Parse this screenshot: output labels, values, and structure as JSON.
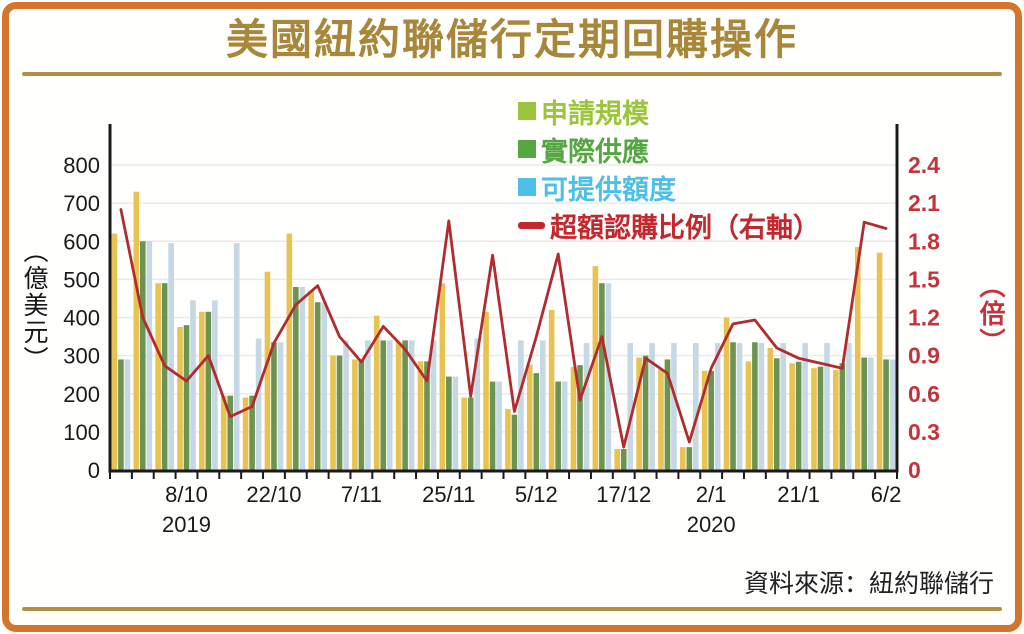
{
  "header": {
    "title": "美國紐約聯儲行定期回購操作"
  },
  "source": {
    "label": "資料來源：紐約聯儲行"
  },
  "legend": {
    "items": [
      {
        "label": "申請規模",
        "marker": "square",
        "color": "#9CC43C"
      },
      {
        "label": "實際供應",
        "marker": "square",
        "color": "#57A644"
      },
      {
        "label": "可提供額度",
        "marker": "square",
        "color": "#4EC0E8"
      },
      {
        "label": "超額認購比例（右軸）",
        "marker": "line",
        "color": "#C3282F"
      }
    ]
  },
  "colors": {
    "frame_border": "#D4752B",
    "title_gold": "#A8873A",
    "rule_gold": "#B28F42",
    "grid": "#ECEAE5",
    "axis": "#1A1A1A",
    "right_axis_text": "#C5333A",
    "bar_applied": "#E9C352",
    "bar_supplied": "#6B9351",
    "bar_offered": "#C6D8E4",
    "ratio_line": "#B02C2E"
  },
  "chart_data": {
    "type": "bar+line",
    "title": "美國紐約聯儲行定期回購操作",
    "n_groups": 36,
    "left_axis": {
      "title": "（億美元）",
      "min": 0,
      "max": 800,
      "ticks": [
        "0",
        "100",
        "200",
        "300",
        "400",
        "500",
        "600",
        "700",
        "800"
      ]
    },
    "right_axis": {
      "title": "（倍）",
      "min": 0,
      "max": 2.4,
      "ticks": [
        "0",
        "0.3",
        "0.6",
        "0.9",
        "1.2",
        "1.5",
        "1.8",
        "2.1",
        "2.4"
      ]
    },
    "x_labels": [
      {
        "group": 4,
        "text": "8/10"
      },
      {
        "group": 8,
        "text": "22/10"
      },
      {
        "group": 12,
        "text": "7/11"
      },
      {
        "group": 16,
        "text": "25/11"
      },
      {
        "group": 20,
        "text": "5/12"
      },
      {
        "group": 24,
        "text": "17/12"
      },
      {
        "group": 28,
        "text": "2/1"
      },
      {
        "group": 32,
        "text": "21/1"
      },
      {
        "group": 36,
        "text": "6/2"
      }
    ],
    "year_labels": [
      {
        "group": 4,
        "text": "2019"
      },
      {
        "group": 28,
        "text": "2020"
      }
    ],
    "grid": true,
    "legend_position": "top-center-inside",
    "series": [
      {
        "name": "申請規模",
        "type": "bar",
        "axis": "left",
        "color": "#E9C352",
        "values": [
          620,
          730,
          490,
          375,
          415,
          195,
          190,
          520,
          620,
          470,
          300,
          290,
          405,
          335,
          285,
          490,
          190,
          415,
          160,
          276,
          420,
          270,
          535,
          55,
          295,
          265,
          60,
          260,
          400,
          285,
          320,
          280,
          267,
          262,
          585,
          570
        ]
      },
      {
        "name": "實際供應",
        "type": "bar",
        "axis": "left",
        "color": "#6B9351",
        "values": [
          290,
          600,
          490,
          380,
          415,
          195,
          195,
          335,
          480,
          440,
          300,
          290,
          340,
          340,
          285,
          245,
          190,
          232,
          145,
          254,
          232,
          275,
          490,
          55,
          300,
          290,
          60,
          260,
          335,
          335,
          293,
          284,
          271,
          280,
          295,
          290
        ]
      },
      {
        "name": "可提供額度",
        "type": "bar",
        "axis": "left",
        "color": "#C6D8E4",
        "values": [
          290,
          600,
          595,
          445,
          445,
          595,
          345,
          335,
          480,
          440,
          340,
          340,
          340,
          340,
          340,
          245,
          345,
          232,
          340,
          340,
          232,
          333,
          490,
          333,
          333,
          333,
          333,
          333,
          333,
          333,
          333,
          333,
          333,
          333,
          295,
          290
        ]
      },
      {
        "name": "超額認購比例（右軸）",
        "type": "line",
        "axis": "right",
        "color": "#B02C2E",
        "values": [
          2.05,
          1.2,
          0.82,
          0.7,
          0.9,
          0.42,
          0.5,
          1.0,
          1.3,
          1.45,
          1.05,
          0.85,
          1.13,
          0.95,
          0.7,
          1.96,
          0.58,
          1.69,
          0.46,
          1.05,
          1.7,
          0.55,
          1.05,
          0.18,
          0.88,
          0.76,
          0.22,
          0.8,
          1.15,
          1.18,
          0.96,
          0.88,
          0.84,
          0.8,
          1.95,
          1.9
        ]
      }
    ]
  }
}
